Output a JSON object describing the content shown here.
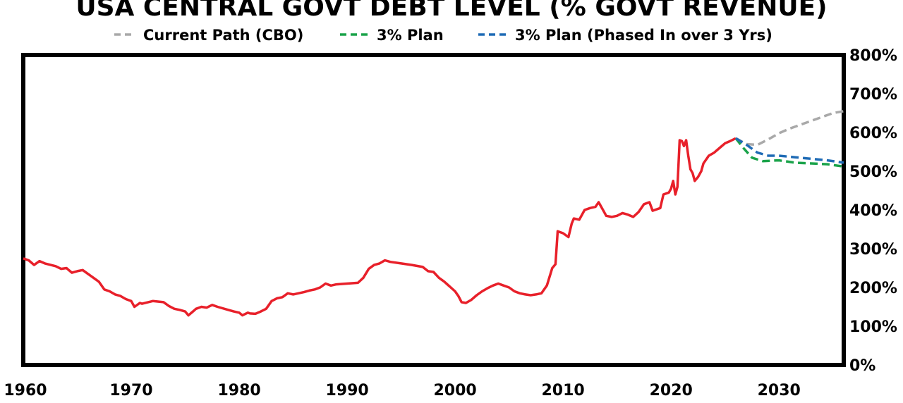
{
  "chart_data": {
    "type": "line",
    "title": "USA CENTRAL GOVT DEBT LEVEL (% GOVT REVENUE)",
    "xlabel": "",
    "ylabel": "",
    "xlim": [
      1960,
      2036
    ],
    "ylim": [
      0,
      800
    ],
    "x_ticks": [
      1960,
      1970,
      1980,
      1990,
      2000,
      2010,
      2020,
      2030
    ],
    "y_ticks": [
      "0%",
      "100%",
      "200%",
      "300%",
      "400%",
      "500%",
      "600%",
      "700%",
      "800%"
    ],
    "y_tick_values": [
      0,
      100,
      200,
      300,
      400,
      500,
      600,
      700,
      800
    ],
    "legend_position": "top",
    "grid": false,
    "series": [
      {
        "color": "#e8202a",
        "style": "solid",
        "points": [
          [
            1960,
            275
          ],
          [
            1960.5,
            270
          ],
          [
            1961,
            258
          ],
          [
            1961.5,
            268
          ],
          [
            1962,
            262
          ],
          [
            1963,
            255
          ],
          [
            1963.5,
            248
          ],
          [
            1964,
            250
          ],
          [
            1964.5,
            238
          ],
          [
            1965,
            242
          ],
          [
            1965.5,
            245
          ],
          [
            1966,
            235
          ],
          [
            1966.5,
            225
          ],
          [
            1967,
            215
          ],
          [
            1967.5,
            195
          ],
          [
            1968,
            190
          ],
          [
            1968.5,
            182
          ],
          [
            1969,
            178
          ],
          [
            1969.5,
            170
          ],
          [
            1970,
            165
          ],
          [
            1970.3,
            150
          ],
          [
            1970.8,
            160
          ],
          [
            1971,
            158
          ],
          [
            1972,
            165
          ],
          [
            1973,
            162
          ],
          [
            1973.5,
            152
          ],
          [
            1974,
            145
          ],
          [
            1974.5,
            142
          ],
          [
            1975,
            138
          ],
          [
            1975.3,
            128
          ],
          [
            1975.8,
            140
          ],
          [
            1976,
            145
          ],
          [
            1976.5,
            150
          ],
          [
            1977,
            148
          ],
          [
            1977.5,
            155
          ],
          [
            1978,
            150
          ],
          [
            1979,
            142
          ],
          [
            1979.5,
            138
          ],
          [
            1980,
            135
          ],
          [
            1980.3,
            128
          ],
          [
            1980.8,
            135
          ],
          [
            1981,
            133
          ],
          [
            1981.5,
            132
          ],
          [
            1982,
            138
          ],
          [
            1982.5,
            145
          ],
          [
            1983,
            165
          ],
          [
            1983.5,
            172
          ],
          [
            1984,
            175
          ],
          [
            1984.5,
            185
          ],
          [
            1985,
            182
          ],
          [
            1986,
            188
          ],
          [
            1986.5,
            192
          ],
          [
            1987,
            195
          ],
          [
            1987.5,
            200
          ],
          [
            1988,
            210
          ],
          [
            1988.5,
            205
          ],
          [
            1989,
            208
          ],
          [
            1990,
            210
          ],
          [
            1991,
            212
          ],
          [
            1991.5,
            225
          ],
          [
            1992,
            248
          ],
          [
            1992.5,
            258
          ],
          [
            1993,
            262
          ],
          [
            1993.5,
            270
          ],
          [
            1994,
            266
          ],
          [
            1995,
            262
          ],
          [
            1996,
            258
          ],
          [
            1997,
            253
          ],
          [
            1997.5,
            242
          ],
          [
            1998,
            240
          ],
          [
            1998.5,
            225
          ],
          [
            1999,
            215
          ],
          [
            2000,
            190
          ],
          [
            2000.3,
            178
          ],
          [
            2000.6,
            162
          ],
          [
            2001,
            160
          ],
          [
            2001.5,
            168
          ],
          [
            2002,
            180
          ],
          [
            2002.5,
            190
          ],
          [
            2003,
            198
          ],
          [
            2003.5,
            205
          ],
          [
            2004,
            210
          ],
          [
            2004.5,
            205
          ],
          [
            2005,
            200
          ],
          [
            2005.5,
            190
          ],
          [
            2006,
            185
          ],
          [
            2006.5,
            182
          ],
          [
            2007,
            180
          ],
          [
            2007.5,
            182
          ],
          [
            2008,
            185
          ],
          [
            2008.5,
            205
          ],
          [
            2009,
            250
          ],
          [
            2009.3,
            260
          ],
          [
            2009.5,
            345
          ],
          [
            2010,
            340
          ],
          [
            2010.5,
            330
          ],
          [
            2010.8,
            365
          ],
          [
            2011,
            378
          ],
          [
            2011.5,
            375
          ],
          [
            2012,
            400
          ],
          [
            2012.5,
            405
          ],
          [
            2013,
            408
          ],
          [
            2013.3,
            420
          ],
          [
            2013.8,
            395
          ],
          [
            2014,
            385
          ],
          [
            2014.5,
            382
          ],
          [
            2015,
            385
          ],
          [
            2015.5,
            392
          ],
          [
            2016,
            388
          ],
          [
            2016.5,
            382
          ],
          [
            2017,
            395
          ],
          [
            2017.5,
            415
          ],
          [
            2018,
            420
          ],
          [
            2018.3,
            398
          ],
          [
            2019,
            405
          ],
          [
            2019.3,
            440
          ],
          [
            2019.8,
            445
          ],
          [
            2020,
            455
          ],
          [
            2020.2,
            475
          ],
          [
            2020.4,
            440
          ],
          [
            2020.6,
            460
          ],
          [
            2020.8,
            580
          ],
          [
            2021,
            578
          ],
          [
            2021.2,
            565
          ],
          [
            2021.4,
            580
          ],
          [
            2021.6,
            540
          ],
          [
            2021.8,
            505
          ],
          [
            2022,
            495
          ],
          [
            2022.2,
            475
          ],
          [
            2022.5,
            485
          ],
          [
            2022.8,
            500
          ],
          [
            2023,
            520
          ],
          [
            2023.5,
            540
          ],
          [
            2024,
            548
          ],
          [
            2024.5,
            560
          ],
          [
            2025,
            572
          ],
          [
            2025.5,
            578
          ],
          [
            2026,
            585
          ]
        ]
      },
      {
        "name": "Current Path (CBO)",
        "color": "#a9a9a9",
        "style": "dashed",
        "points": [
          [
            2026,
            585
          ],
          [
            2027,
            570
          ],
          [
            2028,
            568
          ],
          [
            2029,
            582
          ],
          [
            2030,
            598
          ],
          [
            2031,
            610
          ],
          [
            2032,
            620
          ],
          [
            2033,
            630
          ],
          [
            2034,
            640
          ],
          [
            2035,
            650
          ],
          [
            2036,
            655
          ]
        ]
      },
      {
        "name": "3% Plan",
        "color": "#1aa34a",
        "style": "dashed",
        "points": [
          [
            2026,
            585
          ],
          [
            2026.7,
            560
          ],
          [
            2027.5,
            535
          ],
          [
            2028.5,
            526
          ],
          [
            2030,
            528
          ],
          [
            2031.5,
            522
          ],
          [
            2033,
            520
          ],
          [
            2034.5,
            518
          ],
          [
            2036,
            512
          ]
        ]
      },
      {
        "name": "3% Plan (Phased In over 3 Yrs)",
        "color": "#1f6bb5",
        "style": "dashed",
        "points": [
          [
            2026,
            585
          ],
          [
            2027,
            568
          ],
          [
            2028,
            548
          ],
          [
            2029,
            540
          ],
          [
            2030,
            540
          ],
          [
            2031.5,
            536
          ],
          [
            2033,
            532
          ],
          [
            2034.5,
            528
          ],
          [
            2036,
            522
          ]
        ]
      }
    ]
  }
}
